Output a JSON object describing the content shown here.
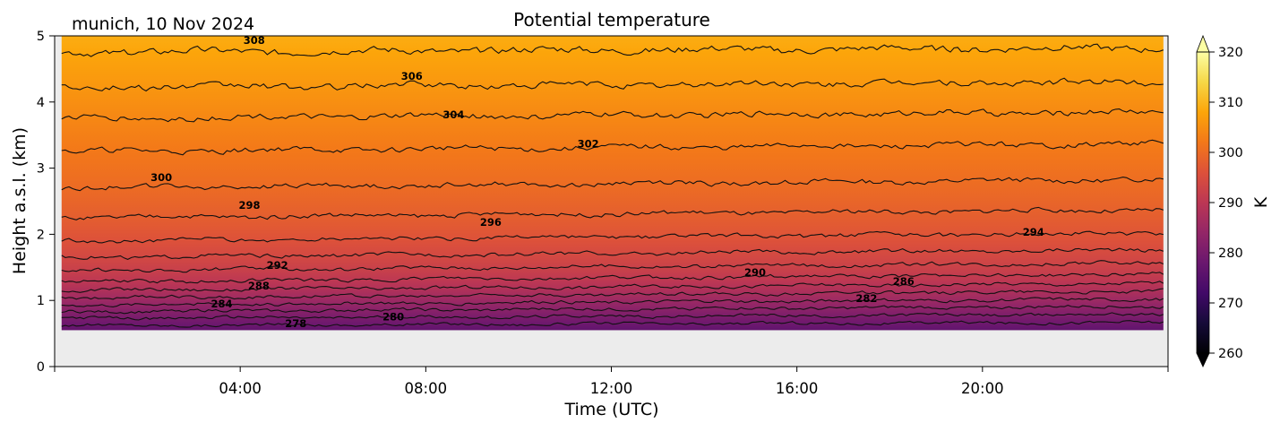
{
  "header": {
    "location_date": "munich, 10 Nov 2024",
    "title": "Potential temperature"
  },
  "chart_data": {
    "type": "heatmap",
    "title": "Potential temperature",
    "xlabel": "Time (UTC)",
    "ylabel": "Height a.s.l. (km)",
    "x_range_hours": [
      0,
      24
    ],
    "x_ticks": [
      {
        "hour": 4,
        "label": "04:00"
      },
      {
        "hour": 8,
        "label": "08:00"
      },
      {
        "hour": 12,
        "label": "12:00"
      },
      {
        "hour": 16,
        "label": "16:00"
      },
      {
        "hour": 20,
        "label": "20:00"
      }
    ],
    "ylim": [
      0,
      5
    ],
    "y_ticks": [
      0,
      1,
      2,
      3,
      4,
      5
    ],
    "data_extent": {
      "start_hour": 0.15,
      "end_hour": 23.9,
      "bottom_km": 0.55,
      "top_km": 5
    },
    "colorbar": {
      "label": "K",
      "range": [
        260,
        320
      ],
      "ticks": [
        260,
        270,
        280,
        290,
        300,
        310,
        320
      ],
      "colormap": "inferno",
      "extend": "both"
    },
    "contours": [
      {
        "level": 278,
        "height_km": 0.62,
        "slope": 0.05
      },
      {
        "level": 280,
        "height_km": 0.73,
        "slope": 0.06
      },
      {
        "level": 282,
        "height_km": 0.83,
        "slope": 0.08
      },
      {
        "level": 284,
        "height_km": 0.93,
        "slope": 0.09
      },
      {
        "level": 286,
        "height_km": 1.04,
        "slope": 0.1
      },
      {
        "level": 288,
        "height_km": 1.15,
        "slope": 0.11
      },
      {
        "level": 290,
        "height_km": 1.28,
        "slope": 0.12
      },
      {
        "level": 292,
        "height_km": 1.45,
        "slope": 0.12
      },
      {
        "level": 294,
        "height_km": 1.65,
        "slope": 0.12
      },
      {
        "level": 296,
        "height_km": 1.9,
        "slope": 0.12
      },
      {
        "level": 298,
        "height_km": 2.25,
        "slope": 0.12
      },
      {
        "level": 300,
        "height_km": 2.7,
        "slope": 0.13
      },
      {
        "level": 302,
        "height_km": 3.25,
        "slope": 0.12
      },
      {
        "level": 304,
        "height_km": 3.75,
        "slope": 0.1
      },
      {
        "level": 306,
        "height_km": 4.22,
        "slope": 0.08
      },
      {
        "level": 308,
        "height_km": 4.75,
        "slope": 0.07
      }
    ],
    "contour_labels": [
      {
        "text": "278",
        "hour": 5.2,
        "height_km": 0.65
      },
      {
        "text": "280",
        "hour": 7.3,
        "height_km": 0.75
      },
      {
        "text": "282",
        "hour": 17.5,
        "height_km": 1.03
      },
      {
        "text": "284",
        "hour": 3.6,
        "height_km": 0.95
      },
      {
        "text": "286",
        "hour": 18.3,
        "height_km": 1.29
      },
      {
        "text": "288",
        "hour": 4.4,
        "height_km": 1.22
      },
      {
        "text": "290",
        "hour": 15.1,
        "height_km": 1.42
      },
      {
        "text": "292",
        "hour": 4.8,
        "height_km": 1.53
      },
      {
        "text": "294",
        "hour": 21.1,
        "height_km": 2.03
      },
      {
        "text": "296",
        "hour": 9.4,
        "height_km": 2.18
      },
      {
        "text": "298",
        "hour": 4.2,
        "height_km": 2.44
      },
      {
        "text": "300",
        "hour": 2.3,
        "height_km": 2.86
      },
      {
        "text": "302",
        "hour": 11.5,
        "height_km": 3.37
      },
      {
        "text": "304",
        "hour": 8.6,
        "height_km": 3.81
      },
      {
        "text": "306",
        "hour": 7.7,
        "height_km": 4.39
      },
      {
        "text": "308",
        "hour": 4.3,
        "height_km": 4.93
      }
    ]
  }
}
